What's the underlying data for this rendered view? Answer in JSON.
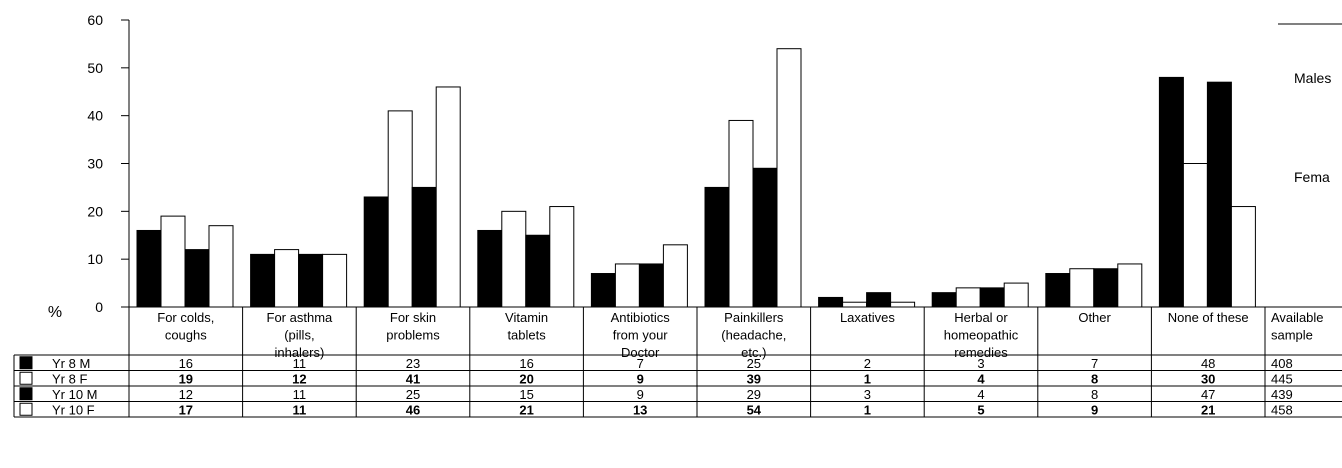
{
  "chart_data": {
    "type": "bar",
    "ylabel": "%",
    "ylim": [
      0,
      60
    ],
    "yticks": [
      0,
      10,
      20,
      30,
      40,
      50,
      60
    ],
    "categories": [
      [
        "For colds,",
        "coughs"
      ],
      [
        "For asthma",
        "(pills,",
        "inhalers)"
      ],
      [
        "For skin",
        "problems"
      ],
      [
        "Vitamin",
        "tablets"
      ],
      [
        "Antibiotics",
        "from your",
        "Doctor"
      ],
      [
        "Painkillers",
        "(headache,",
        "etc.)"
      ],
      [
        "Laxatives"
      ],
      [
        "Herbal or",
        "homeopathic",
        "remedies"
      ],
      [
        "Other"
      ],
      [
        "None of these"
      ]
    ],
    "sample_header": [
      "Available",
      "sample"
    ],
    "series": [
      {
        "name": "Yr 8 M",
        "fill": "#000000",
        "bold": false,
        "values": [
          16,
          11,
          23,
          16,
          7,
          25,
          2,
          3,
          7,
          48
        ],
        "sample": "408"
      },
      {
        "name": "Yr 8 F",
        "fill": "#ffffff",
        "bold": true,
        "values": [
          19,
          12,
          41,
          20,
          9,
          39,
          1,
          4,
          8,
          30
        ],
        "sample": "445"
      },
      {
        "name": "Yr 10 M",
        "fill": "#000000",
        "bold": false,
        "values": [
          12,
          11,
          25,
          15,
          9,
          29,
          3,
          4,
          8,
          47
        ],
        "sample": "439"
      },
      {
        "name": "Yr 10 F",
        "fill": "#ffffff",
        "bold": true,
        "values": [
          17,
          11,
          46,
          21,
          13,
          54,
          1,
          5,
          9,
          21
        ],
        "sample": "458"
      }
    ],
    "side_labels": [
      "Males",
      "Fema"
    ]
  }
}
